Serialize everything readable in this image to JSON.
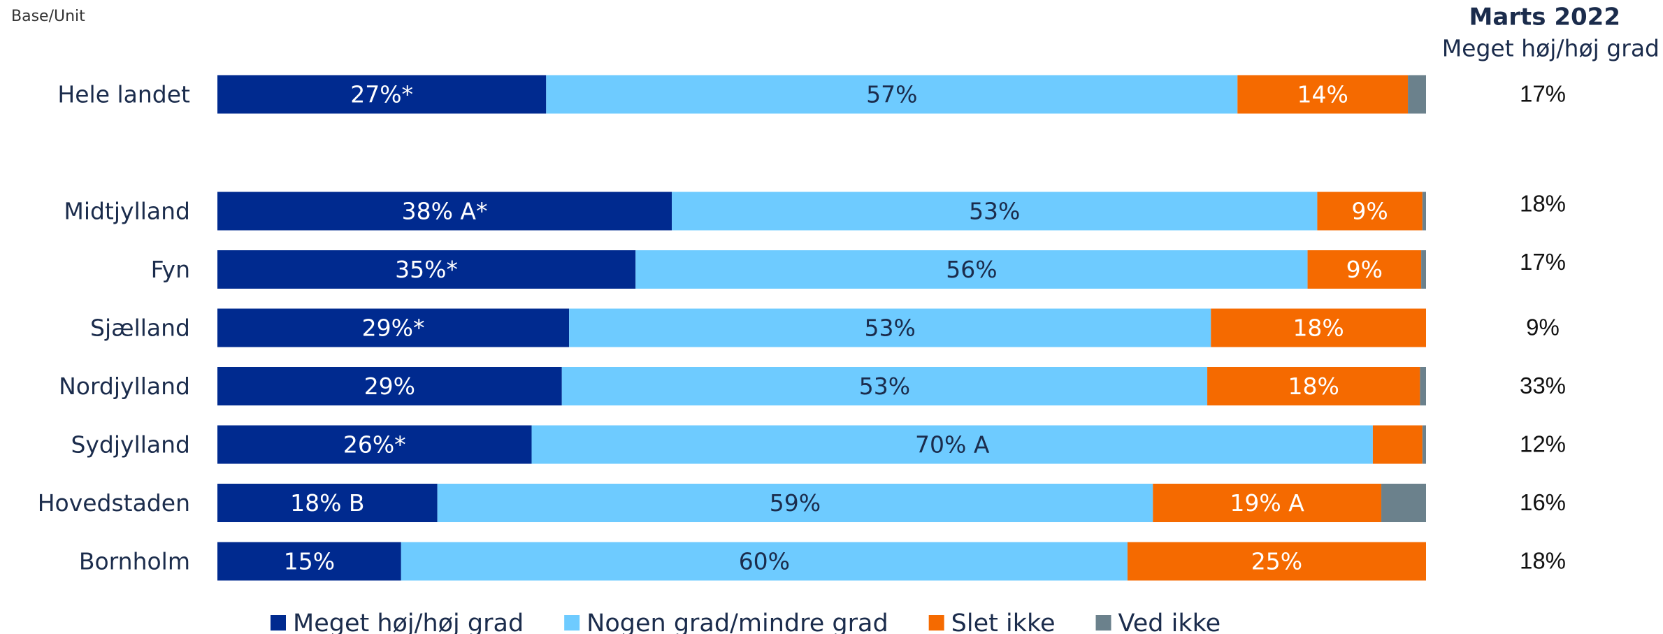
{
  "chart_data": {
    "type": "stacked-bar-horizontal",
    "note_top_left": "Base/Unit",
    "categories": [
      "Hele landet",
      "Midtjylland",
      "Fyn",
      "Sjælland",
      "Nordjylland",
      "Sydjylland",
      "Hovedstaden",
      "Bornholm"
    ],
    "xlim": [
      0,
      100
    ],
    "series": [
      {
        "name": "Meget høj/høj grad",
        "color": "#002a8f",
        "label_color": "#ffffff",
        "values": [
          27.2,
          37.6,
          34.6,
          29.1,
          28.5,
          26.0,
          18.2,
          15.2
        ],
        "value_labels": [
          "27%*",
          "38% A*",
          "35%*",
          "29%*",
          "29%",
          "26%*",
          "18% B",
          "15%"
        ]
      },
      {
        "name": "Nogen grad/mindre grad",
        "color": "#6ecbff",
        "label_color": "#1b2c4c",
        "values": [
          57.2,
          53.4,
          55.6,
          53.1,
          53.4,
          69.6,
          59.2,
          60.1
        ],
        "value_labels": [
          "57%",
          "53%",
          "56%",
          "53%",
          "53%",
          "70% A",
          "59%",
          "60%"
        ]
      },
      {
        "name": "Slet ikke",
        "color": "#f56a00",
        "label_color": "#ffffff",
        "values": [
          14.1,
          8.7,
          9.4,
          17.8,
          17.6,
          4.1,
          18.9,
          24.7
        ],
        "value_labels": [
          "14%",
          "9%",
          "9%",
          "18%",
          "18%",
          null,
          "19% A",
          "25%"
        ]
      },
      {
        "name": "Ved ikke",
        "color": "#6b818c",
        "values": [
          1.5,
          0.3,
          0.4,
          0,
          0.5,
          0.3,
          3.7,
          0
        ]
      }
    ],
    "side_column": {
      "title": "Marts 2022",
      "subtitle": "Meget høj/høj grad",
      "values": [
        17,
        18,
        17,
        9,
        33,
        12,
        16,
        18
      ],
      "value_labels": [
        "17%",
        "18%",
        "17%",
        "9%",
        "33%",
        "12%",
        "16%",
        "18%"
      ]
    }
  }
}
